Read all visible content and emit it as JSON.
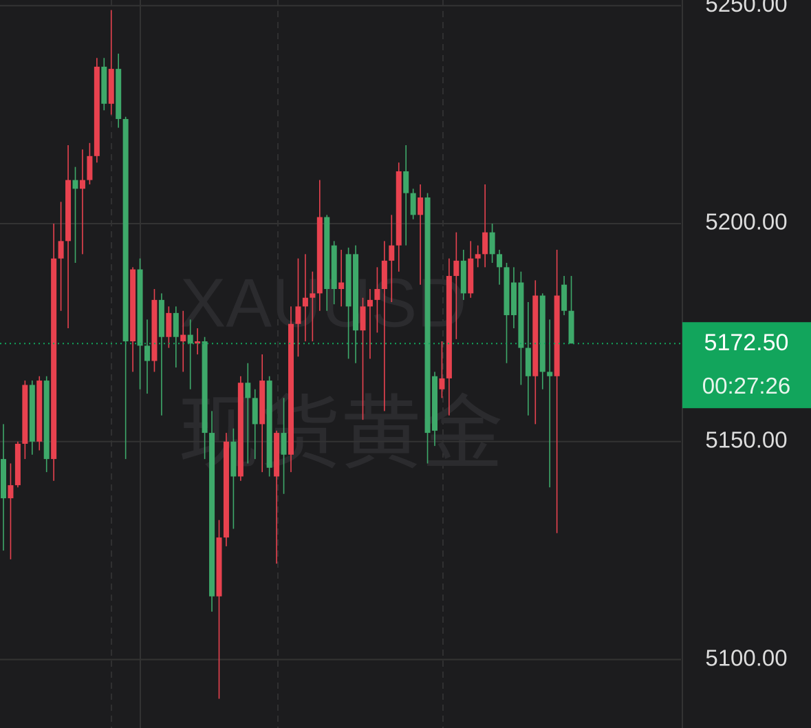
{
  "chart_data": {
    "type": "candlestick",
    "watermark": "XAUUSD",
    "watermark_subtitle": "现货黄金",
    "open": [
      5146,
      5137,
      5140,
      5149.5,
      5163,
      5150,
      5164,
      5146,
      5192,
      5196,
      5210,
      5208,
      5210,
      5215.5,
      5236,
      5227.5,
      5235.5,
      5224,
      5173,
      5189.5,
      5172,
      5168.5,
      5182.5,
      5174,
      5179.5,
      5173,
      5174.5,
      5172.5,
      5173,
      5152,
      5114.5,
      5128,
      5150,
      5142,
      5163.5,
      5160,
      5154,
      5164,
      5142,
      5152,
      5147,
      5177,
      5181,
      5183,
      5184,
      5201.5,
      5195,
      5185,
      5193,
      5193,
      5175.5,
      5181,
      5182.5,
      5185,
      5191.5,
      5195,
      5212,
      5207,
      5202,
      5206,
      5165,
      5162,
      5164.5,
      5188,
      5191.5,
      5184,
      5192,
      5193,
      5198,
      5193,
      5190,
      5186.5,
      5186.5,
      5171.5,
      5165,
      5183.5,
      5166,
      5165,
      5186,
      5180
    ],
    "high": [
      5154,
      5145,
      5150,
      5164,
      5164,
      5165,
      5165,
      5200,
      5205,
      5218,
      5213,
      5217,
      5218.5,
      5238,
      5238,
      5249,
      5239,
      5224.5,
      5190,
      5192,
      5178,
      5185,
      5184,
      5181,
      5181,
      5180,
      5178,
      5176,
      5174,
      5157,
      5132,
      5152,
      5153,
      5165,
      5168,
      5162,
      5170,
      5165,
      5152.5,
      5160,
      5181,
      5192,
      5193,
      5189,
      5210,
      5202,
      5196,
      5194,
      5194.5,
      5195,
      5183,
      5185,
      5190,
      5196,
      5202,
      5214,
      5218,
      5208,
      5209,
      5207,
      5166,
      5173,
      5192,
      5198,
      5194,
      5196,
      5195,
      5209,
      5200,
      5194,
      5191,
      5190,
      5189,
      5182,
      5187,
      5184,
      5178,
      5194,
      5188,
      5188
    ],
    "low": [
      5125,
      5123,
      5139.5,
      5146,
      5147,
      5148,
      5143,
      5141,
      5180,
      5176,
      5191,
      5193,
      5209,
      5214,
      5226,
      5225,
      5222,
      5146,
      5166,
      5162,
      5161,
      5166,
      5156,
      5171.5,
      5167,
      5166,
      5162,
      5170,
      5146,
      5111,
      5091,
      5126,
      5130,
      5141,
      5145,
      5146,
      5143,
      5142,
      5122,
      5138,
      5143,
      5169.5,
      5173,
      5173,
      5180,
      5180,
      5181.5,
      5181,
      5169,
      5168,
      5155,
      5169,
      5175,
      5157,
      5182,
      5189,
      5195,
      5201,
      5186,
      5145,
      5149,
      5160,
      5156,
      5173.5,
      5182.5,
      5183,
      5190,
      5190,
      5191,
      5186,
      5168,
      5176,
      5163,
      5156,
      5154,
      5162,
      5139.5,
      5129,
      5179,
      5172.5
    ],
    "close": [
      5137,
      5140,
      5149.5,
      5163,
      5150,
      5164,
      5146,
      5192,
      5196,
      5210,
      5208,
      5210,
      5215.5,
      5236,
      5227.5,
      5235.5,
      5224,
      5173,
      5189.5,
      5172,
      5168.5,
      5182.5,
      5174,
      5179.5,
      5174,
      5174.5,
      5172.5,
      5173,
      5152,
      5114.5,
      5128,
      5150,
      5142,
      5163.5,
      5160,
      5154,
      5164,
      5144,
      5152,
      5147,
      5177,
      5181,
      5183,
      5184,
      5201.5,
      5185,
      5185,
      5186.5,
      5181,
      5175.5,
      5181,
      5182.5,
      5185,
      5191.5,
      5195,
      5212,
      5207,
      5202,
      5206,
      5152,
      5152.5,
      5164.5,
      5188,
      5191.5,
      5184,
      5192,
      5193,
      5198,
      5193,
      5190,
      5179,
      5179,
      5171.5,
      5165,
      5183.5,
      5166,
      5165,
      5183.5,
      5180,
      5172.5
    ],
    "up_color": "#e8424f",
    "down_color": "#3ea96a",
    "ylim": [
      5084.3,
      5251.3
    ],
    "yticks": [
      {
        "value": 5100,
        "label": "5100.00"
      },
      {
        "value": 5150,
        "label": "5150.00"
      },
      {
        "value": 5200,
        "label": "5200.00"
      },
      {
        "value": 5250,
        "label": "5250.00"
      }
    ],
    "grid": true,
    "current_price": {
      "value": 5172.5,
      "label": "5172.50"
    },
    "countdown": "00:27:26",
    "current_price_color": "#12a55c"
  }
}
